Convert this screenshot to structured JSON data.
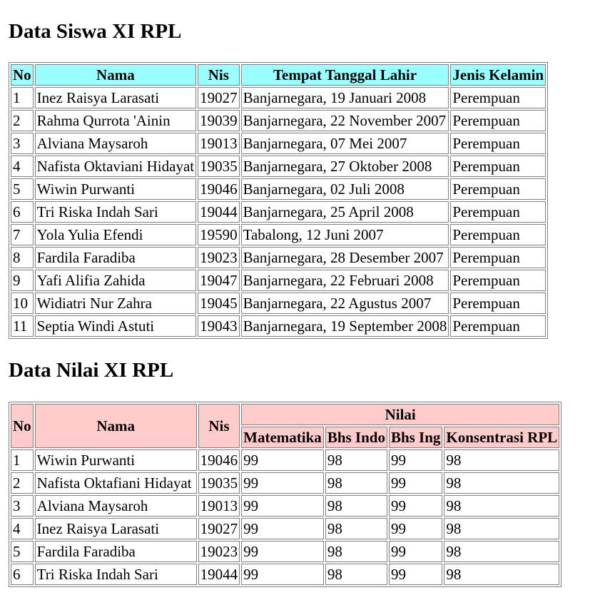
{
  "siswa": {
    "title": "Data Siswa XI RPL",
    "headers": [
      "No",
      "Nama",
      "Nis",
      "Tempat Tanggal Lahir",
      "Jenis Kelamin"
    ],
    "rows": [
      [
        "1",
        "Inez Raisya Larasati",
        "19027",
        "Banjarnegara, 19 Januari 2008",
        "Perempuan"
      ],
      [
        "2",
        "Rahma Qurrota 'Ainin",
        "19039",
        "Banjarnegara, 22 November 2007",
        "Perempuan"
      ],
      [
        "3",
        "Alviana Maysaroh",
        "19013",
        "Banjarnegara, 07 Mei 2007",
        "Perempuan"
      ],
      [
        "4",
        "Nafista Oktaviani Hidayat",
        "19035",
        "Banjarnegara, 27 Oktober 2008",
        "Perempuan"
      ],
      [
        "5",
        "Wiwin Purwanti",
        "19046",
        "Banjarnegara, 02 Juli 2008",
        "Perempuan"
      ],
      [
        "6",
        "Tri Riska Indah Sari",
        "19044",
        "Banjarnegara, 25 April 2008",
        "Perempuan"
      ],
      [
        "7",
        "Yola Yulia Efendi",
        "19590",
        "Tabalong, 12 Juni 2007",
        "Perempuan"
      ],
      [
        "8",
        "Fardila Faradiba",
        "19023",
        "Banjarnegara, 28 Desember 2007",
        "Perempuan"
      ],
      [
        "9",
        "Yafi Alifia Zahida",
        "19047",
        "Banjarnegara, 22 Februari 2008",
        "Perempuan"
      ],
      [
        "10",
        "Widiatri Nur Zahra",
        "19045",
        "Banjarnegara, 22 Agustus 2007",
        "Perempuan"
      ],
      [
        "11",
        "Septia Windi Astuti",
        "19043",
        "Banjarnegara, 19 September 2008",
        "Perempuan"
      ]
    ]
  },
  "nilai": {
    "title": "Data Nilai XI RPL",
    "headers": {
      "no": "No",
      "nama": "Nama",
      "nis": "Nis",
      "nilai": "Nilai",
      "subjects": [
        "Matematika",
        "Bhs Indo",
        "Bhs Ing",
        "Konsentrasi RPL"
      ]
    },
    "rows": [
      [
        "1",
        "Wiwin Purwanti",
        "19046",
        "99",
        "98",
        "99",
        "98"
      ],
      [
        "2",
        "Nafista Oktafiani Hidayat",
        "19035",
        "99",
        "98",
        "99",
        "98"
      ],
      [
        "3",
        "Alviana Maysaroh",
        "19013",
        "99",
        "98",
        "99",
        "98"
      ],
      [
        "4",
        "Inez Raisya Larasati",
        "19027",
        "99",
        "98",
        "99",
        "98"
      ],
      [
        "5",
        "Fardila Faradiba",
        "19023",
        "99",
        "98",
        "99",
        "98"
      ],
      [
        "6",
        "Tri Riska Indah Sari",
        "19044",
        "99",
        "98",
        "99",
        "98"
      ]
    ]
  },
  "colors": {
    "siswa_header_bg": "#99ffff",
    "nilai_header_bg": "#ffcccc",
    "border": "#808080"
  }
}
